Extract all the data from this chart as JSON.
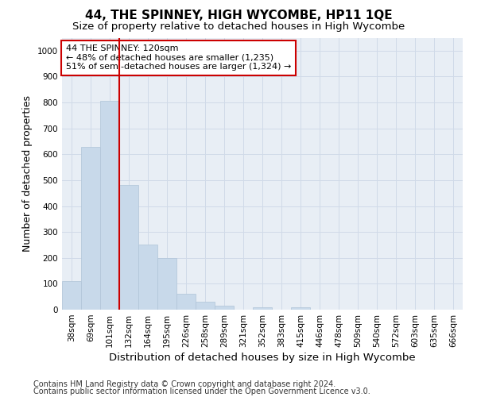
{
  "title": "44, THE SPINNEY, HIGH WYCOMBE, HP11 1QE",
  "subtitle": "Size of property relative to detached houses in High Wycombe",
  "xlabel": "Distribution of detached houses by size in High Wycombe",
  "ylabel": "Number of detached properties",
  "footnote1": "Contains HM Land Registry data © Crown copyright and database right 2024.",
  "footnote2": "Contains public sector information licensed under the Open Government Licence v3.0.",
  "categories": [
    "38sqm",
    "69sqm",
    "101sqm",
    "132sqm",
    "164sqm",
    "195sqm",
    "226sqm",
    "258sqm",
    "289sqm",
    "321sqm",
    "352sqm",
    "383sqm",
    "415sqm",
    "446sqm",
    "478sqm",
    "509sqm",
    "540sqm",
    "572sqm",
    "603sqm",
    "635sqm",
    "666sqm"
  ],
  "values": [
    110,
    630,
    805,
    480,
    250,
    200,
    60,
    30,
    15,
    0,
    10,
    0,
    10,
    0,
    0,
    0,
    0,
    0,
    0,
    0,
    0
  ],
  "bar_color": "#c8d9ea",
  "bar_edgecolor": "#b0c4d8",
  "red_line_x": 2.5,
  "line_color": "#cc0000",
  "annotation_text": "44 THE SPINNEY: 120sqm\n← 48% of detached houses are smaller (1,235)\n51% of semi-detached houses are larger (1,324) →",
  "annotation_box_edgecolor": "#cc0000",
  "annotation_box_facecolor": "#ffffff",
  "ylim": [
    0,
    1050
  ],
  "yticks": [
    0,
    100,
    200,
    300,
    400,
    500,
    600,
    700,
    800,
    900,
    1000
  ],
  "grid_color": "#d0dae8",
  "bg_color": "#e8eef5",
  "title_fontsize": 11,
  "subtitle_fontsize": 9.5,
  "ylabel_fontsize": 9,
  "xlabel_fontsize": 9.5,
  "tick_fontsize": 7.5,
  "annotation_fontsize": 8,
  "footnote_fontsize": 7
}
